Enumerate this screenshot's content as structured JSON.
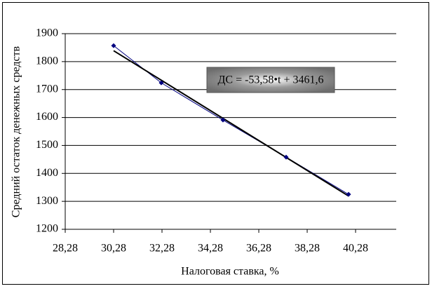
{
  "chart_data": {
    "type": "scatter",
    "x_label": "Налоговая ставка, %",
    "y_label": "Средний остаток денежных средств",
    "annotation": "ДС = -53,58•t + 3461,6",
    "x": [
      30.28,
      32.25,
      34.8,
      37.41,
      39.99
    ],
    "values": [
      1857,
      1724,
      1591,
      1458,
      1325
    ],
    "color": "#000080",
    "trendline": {
      "x": [
        30.28,
        39.99
      ],
      "values": [
        1839,
        1319
      ],
      "color": "#000000"
    },
    "xlim": [
      28.28,
      41.96
    ],
    "ylim": [
      1200,
      1900
    ],
    "xticks": [
      {
        "value": 28.28,
        "label": "28,28"
      },
      {
        "value": 30.28,
        "label": "30,28"
      },
      {
        "value": 32.28,
        "label": "32,28"
      },
      {
        "value": 34.28,
        "label": "34,28"
      },
      {
        "value": 36.28,
        "label": "36,28"
      },
      {
        "value": 38.28,
        "label": "38,28"
      },
      {
        "value": 40.28,
        "label": "40,28"
      }
    ],
    "yticks": [
      1200,
      1300,
      1400,
      1500,
      1600,
      1700,
      1800,
      1900
    ],
    "grid": true
  }
}
